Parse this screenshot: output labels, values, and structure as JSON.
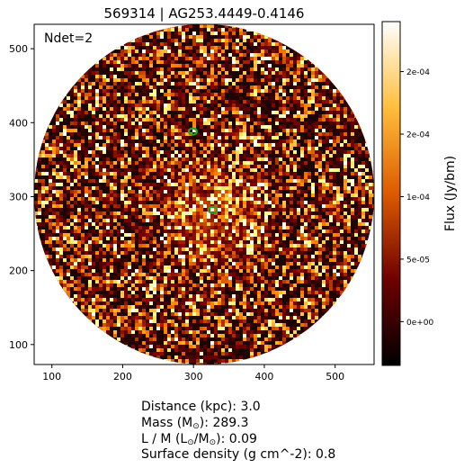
{
  "title": "569314 | AG253.4449-0.4146",
  "chart_data": {
    "type": "heatmap",
    "title": "569314 | AG253.4449-0.4146",
    "xlabel": "",
    "ylabel": "",
    "xlim": [
      75,
      555
    ],
    "ylim": [
      73,
      533
    ],
    "xticks": [
      100,
      200,
      300,
      400,
      500
    ],
    "yticks": [
      100,
      200,
      300,
      400,
      500
    ],
    "map_center": [
      315,
      303
    ],
    "map_radius": 240,
    "colorbar": {
      "label": "Flux (Jy/bm)",
      "vmin": -3.5e-05,
      "vmax": 0.00024,
      "ticks": [
        0,
        5e-05,
        0.0001,
        0.00015,
        0.0002
      ],
      "tick_labels": [
        "0e+00",
        "5e-05",
        "1e-04",
        "2e-04",
        "2e-04"
      ],
      "colormap": "afmhot"
    },
    "annotation": "Ndet=2",
    "detections": [
      {
        "x": 299,
        "y": 388
      },
      {
        "x": 327,
        "y": 282
      }
    ],
    "detection_color": "#2ca02c"
  },
  "info": {
    "distance_label": "Distance (kpc): ",
    "distance_value": "3.0",
    "mass_label": "Mass (M",
    "mass_sub": "⊙",
    "mass_tail": "): ",
    "mass_value": "289.3",
    "lm_label": "L / M (L",
    "lm_sub1": "⊙",
    "lm_mid": "/M",
    "lm_sub2": "⊙",
    "lm_tail": "): ",
    "lm_value": "0.09",
    "sd_label": "Surface density (g cm^-2): ",
    "sd_value": "0.8"
  }
}
